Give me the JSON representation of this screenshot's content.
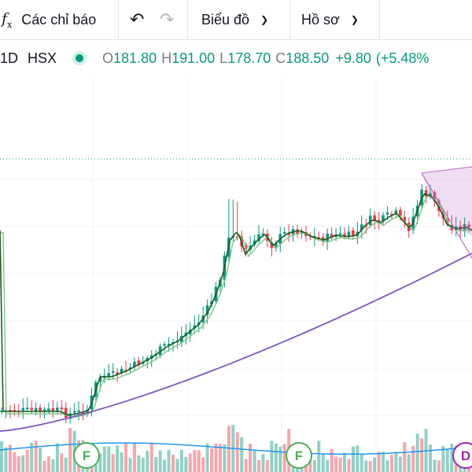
{
  "toolbar": {
    "indicators_label": "Các chỉ báo",
    "chart_label": "Biểu đồ",
    "profile_label": "Hồ sơ"
  },
  "legend": {
    "interval": "1D",
    "exchange": "HSX",
    "o_label": "O",
    "o_value": "181.80",
    "h_label": "H",
    "h_value": "191.00",
    "l_label": "L",
    "l_value": "178.70",
    "c_label": "C",
    "c_value": "188.50",
    "change": "+9.80",
    "change_pct": "(+5.48%"
  },
  "colors": {
    "up": "#089981",
    "down": "#f23645",
    "ma_fast": "#1b5e20",
    "ma_mid": "#81c784",
    "ma_slow": "#7e57c2",
    "volume_ma": "#2196f3",
    "marker_green": "#4caf50",
    "marker_purple": "#9c27b0"
  },
  "markers": [
    {
      "label": "F"
    },
    {
      "label": "F"
    },
    {
      "label": "D"
    }
  ],
  "chart_data": {
    "type": "candlestick",
    "series": [
      {
        "name": "price"
      },
      {
        "name": "moving-average-fast"
      },
      {
        "name": "moving-average-medium"
      },
      {
        "name": "moving-average-long"
      },
      {
        "name": "volume"
      },
      {
        "name": "volume-average"
      }
    ],
    "last": {
      "open": 181.8,
      "high": 191.0,
      "low": 178.7,
      "close": 188.5
    }
  }
}
